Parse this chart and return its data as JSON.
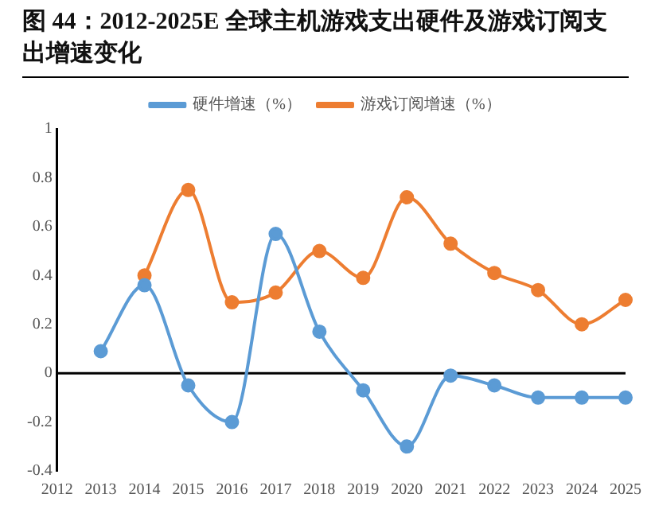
{
  "chart_data": {
    "type": "line",
    "title": "图 44：2012-2025E 全球主机游戏支出硬件及游戏订阅支出增速变化",
    "categories": [
      "2012",
      "2013",
      "2014",
      "2015",
      "2016",
      "2017",
      "2018",
      "2019",
      "2020",
      "2021",
      "2022",
      "2023",
      "2024",
      "2025"
    ],
    "series": [
      {
        "name": "硬件增速（%）",
        "color": "#5b9bd5",
        "values": [
          null,
          0.09,
          0.36,
          -0.05,
          -0.2,
          0.57,
          0.17,
          -0.07,
          -0.3,
          -0.01,
          -0.05,
          -0.1,
          -0.1,
          -0.1
        ]
      },
      {
        "name": "游戏订阅增速（%）",
        "color": "#ed7d31",
        "values": [
          null,
          null,
          0.4,
          0.75,
          0.29,
          0.33,
          0.5,
          0.39,
          0.72,
          0.53,
          0.41,
          0.34,
          0.2,
          0.3
        ]
      }
    ],
    "ylim": [
      -0.4,
      1
    ],
    "yticks": [
      -0.4,
      -0.2,
      0,
      0.2,
      0.4,
      0.6,
      0.8,
      1
    ],
    "grid": false,
    "ref_lines": [
      {
        "axis": "y",
        "value": 0,
        "color": "#000000"
      }
    ],
    "legend": "top",
    "marker": "circle",
    "line_style": "solid"
  }
}
